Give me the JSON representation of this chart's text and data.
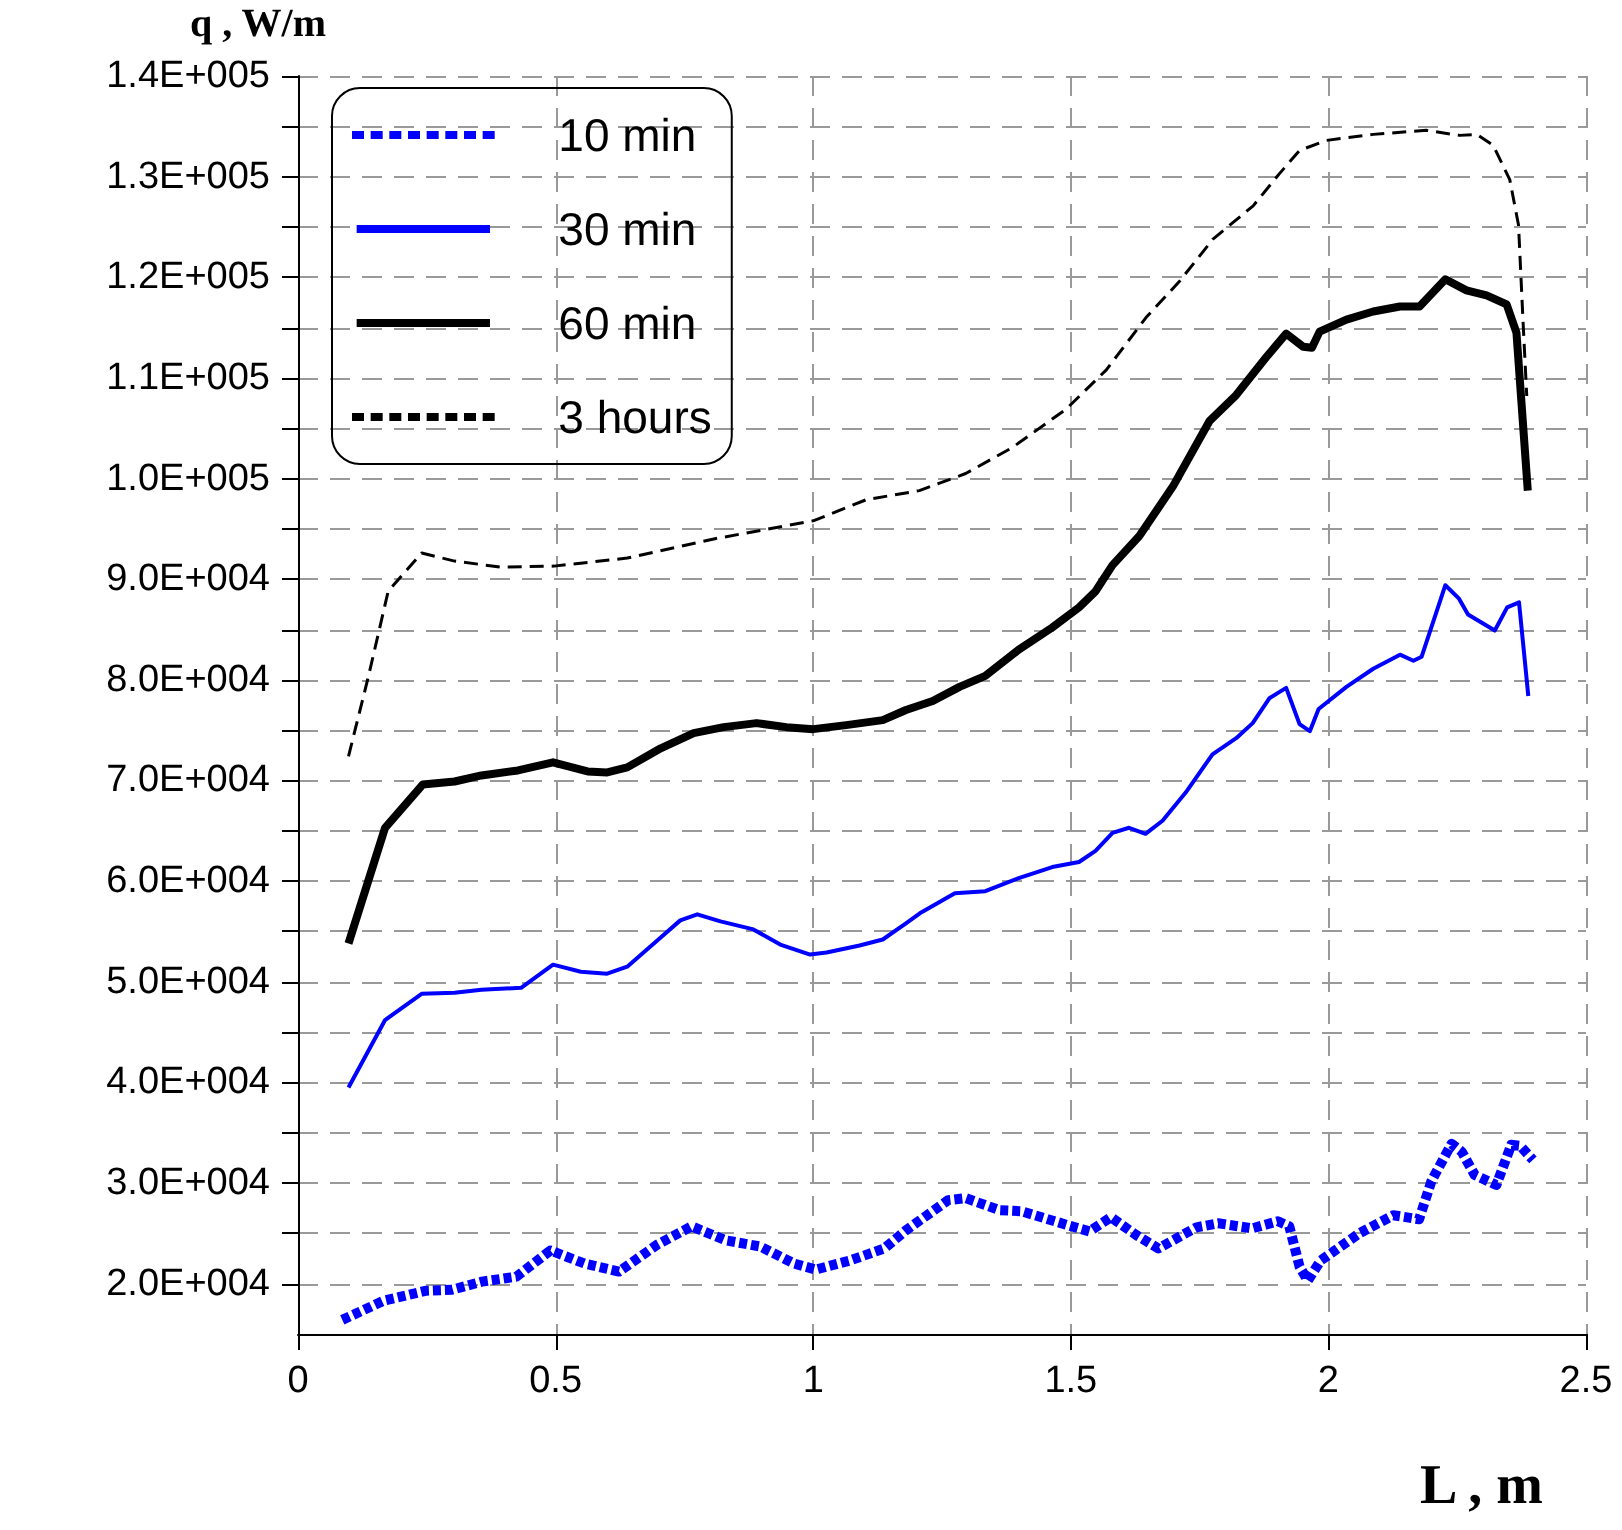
{
  "chart_data": {
    "type": "line",
    "xlabel": "L , m",
    "ylabel": "q , W/m",
    "xlim": [
      0,
      2.5
    ],
    "xticks": [
      0,
      0.5,
      1,
      1.5,
      2,
      2.5
    ],
    "ylim": [
      15000,
      140000
    ],
    "yticks": [
      {
        "value": 20000,
        "label": "2.0E+004"
      },
      {
        "value": 25000,
        "label": null
      },
      {
        "value": 30000,
        "label": "3.0E+004"
      },
      {
        "value": 35000,
        "label": null
      },
      {
        "value": 40000,
        "label": "4.0E+004"
      },
      {
        "value": 45000,
        "label": null
      },
      {
        "value": 50000,
        "label": "5.0E+004"
      },
      {
        "value": 55000,
        "label": null
      },
      {
        "value": 60000,
        "label": "6.0E+004"
      },
      {
        "value": 65000,
        "label": null
      },
      {
        "value": 70000,
        "label": "7.0E+004"
      },
      {
        "value": 75000,
        "label": null
      },
      {
        "value": 80000,
        "label": "8.0E+004"
      },
      {
        "value": 85000,
        "label": null
      },
      {
        "value": 90000,
        "label": "9.0E+004"
      },
      {
        "value": 95000,
        "label": null
      },
      {
        "value": 100000,
        "label": "1.0E+005"
      },
      {
        "value": 105000,
        "label": null
      },
      {
        "value": 110000,
        "label": "1.1E+005"
      },
      {
        "value": 115000,
        "label": null
      },
      {
        "value": 120000,
        "label": "1.2E+005"
      },
      {
        "value": 125000,
        "label": null
      },
      {
        "value": 130000,
        "label": "1.3E+005"
      },
      {
        "value": 135000,
        "label": null
      },
      {
        "value": 140000,
        "label": "1.4E+005"
      }
    ],
    "grid": true,
    "legend": "top left",
    "marker": "none",
    "series": [
      {
        "name": "10 min",
        "color": "#0000ff",
        "line_style": "dashed",
        "x": [
          0.086,
          0.166,
          0.249,
          0.299,
          0.357,
          0.424,
          0.49,
          0.556,
          0.623,
          0.698,
          0.764,
          0.831,
          0.897,
          0.963,
          1.005,
          1.071,
          1.138,
          1.18,
          1.262,
          1.296,
          1.362,
          1.404,
          1.495,
          1.536,
          1.578,
          1.628,
          1.67,
          1.744,
          1.786,
          1.852,
          1.902,
          1.924,
          1.944,
          1.96,
          1.985,
          2.06,
          2.126,
          2.176,
          2.2,
          2.239,
          2.259,
          2.284,
          2.326,
          2.355,
          2.372,
          2.397
        ],
        "values": [
          16400,
          18300,
          19300,
          19400,
          20200,
          20700,
          23300,
          22000,
          21200,
          23900,
          25700,
          24300,
          23700,
          22000,
          21400,
          22300,
          23500,
          25300,
          28300,
          28500,
          27300,
          27200,
          25800,
          25200,
          26600,
          24800,
          23500,
          25600,
          26000,
          25500,
          26200,
          25700,
          21700,
          20300,
          22300,
          25000,
          26800,
          26400,
          30200,
          33900,
          33100,
          30800,
          29800,
          33800,
          33700,
          32300
        ]
      },
      {
        "name": "30 min",
        "color": "#0000ff",
        "line_style": "solid",
        "x": [
          0.098,
          0.169,
          0.24,
          0.304,
          0.356,
          0.433,
          0.495,
          0.549,
          0.6,
          0.639,
          0.704,
          0.742,
          0.775,
          0.82,
          0.884,
          0.936,
          0.994,
          1.026,
          1.09,
          1.135,
          1.18,
          1.207,
          1.275,
          1.334,
          1.399,
          1.464,
          1.516,
          1.548,
          1.581,
          1.613,
          1.645,
          1.678,
          1.723,
          1.775,
          1.821,
          1.853,
          1.886,
          1.918,
          1.944,
          1.964,
          1.981,
          2.035,
          2.087,
          2.139,
          2.165,
          2.181,
          2.227,
          2.253,
          2.271,
          2.323,
          2.347,
          2.37,
          2.388
        ],
        "values": [
          39500,
          46200,
          48800,
          48900,
          49200,
          49400,
          51700,
          51000,
          50800,
          51500,
          54400,
          56100,
          56700,
          56000,
          55200,
          53700,
          52700,
          52900,
          53600,
          54200,
          55800,
          56800,
          58800,
          59000,
          60300,
          61400,
          61900,
          63000,
          64800,
          65300,
          64700,
          66000,
          68800,
          72600,
          74200,
          75700,
          78200,
          79200,
          75600,
          74900,
          77100,
          79300,
          81100,
          82500,
          81900,
          82300,
          89400,
          88100,
          86500,
          84900,
          87200,
          87700,
          78400
        ]
      },
      {
        "name": "60 min",
        "color": "#000000",
        "line_style": "solid",
        "x": [
          0.098,
          0.169,
          0.242,
          0.304,
          0.356,
          0.427,
          0.495,
          0.562,
          0.6,
          0.639,
          0.704,
          0.768,
          0.826,
          0.89,
          0.948,
          1.0,
          1.064,
          1.135,
          1.18,
          1.232,
          1.284,
          1.334,
          1.399,
          1.464,
          1.516,
          1.548,
          1.581,
          1.633,
          1.698,
          1.769,
          1.821,
          1.88,
          1.918,
          1.951,
          1.968,
          1.983,
          2.035,
          2.087,
          2.139,
          2.177,
          2.227,
          2.268,
          2.307,
          2.346,
          2.365,
          2.387
        ],
        "values": [
          53800,
          65300,
          69600,
          69900,
          70500,
          71000,
          71800,
          70900,
          70800,
          71300,
          73200,
          74700,
          75300,
          75700,
          75300,
          75100,
          75500,
          76000,
          77000,
          77900,
          79300,
          80400,
          83000,
          85200,
          87200,
          88800,
          91400,
          94300,
          99200,
          105700,
          108300,
          112100,
          114400,
          113100,
          113000,
          114600,
          115800,
          116600,
          117100,
          117100,
          119800,
          118700,
          118200,
          117300,
          114500,
          98800
        ]
      },
      {
        "name": "3 hours",
        "color": "#000000",
        "line_style": "dashed",
        "x": [
          0.098,
          0.137,
          0.175,
          0.24,
          0.304,
          0.394,
          0.497,
          0.639,
          0.807,
          1.0,
          1.103,
          1.206,
          1.296,
          1.387,
          1.491,
          1.569,
          1.646,
          1.711,
          1.776,
          1.854,
          1.905,
          1.944,
          1.996,
          2.087,
          2.19,
          2.255,
          2.288,
          2.32,
          2.352,
          2.369,
          2.378,
          2.385
        ],
        "values": [
          72400,
          80400,
          88800,
          92600,
          91800,
          91200,
          91300,
          92100,
          94000,
          95800,
          97900,
          98800,
          100500,
          103100,
          106900,
          110800,
          116000,
          119600,
          123800,
          127100,
          130300,
          132600,
          133600,
          134200,
          134600,
          134100,
          134200,
          133100,
          129700,
          125200,
          115400,
          108200
        ]
      }
    ]
  }
}
